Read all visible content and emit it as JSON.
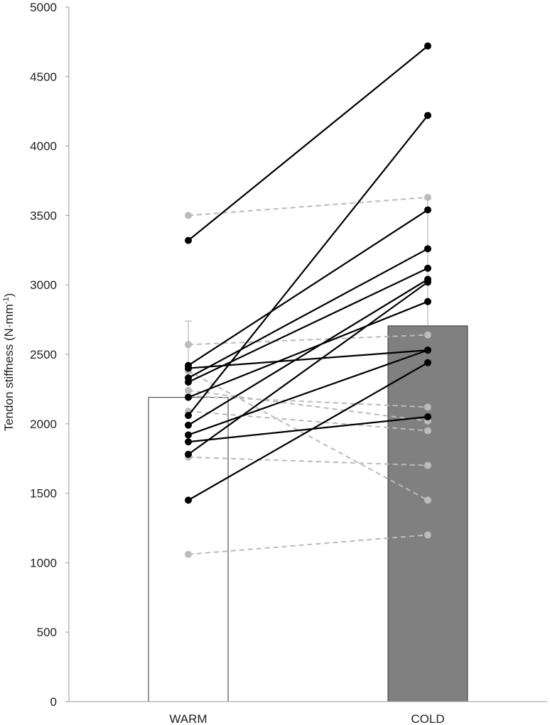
{
  "chart_data": {
    "type": "bar",
    "categories": [
      "WARM",
      "COLD"
    ],
    "means": [
      2190,
      2705
    ],
    "sd_upper": [
      2740,
      3620
    ],
    "ylabel": "Tendon stiffness (N·mm",
    "ylabel_superscript": "-1",
    "ylabel_close": ")",
    "ylim": [
      0,
      5000
    ],
    "yticks": [
      0,
      500,
      1000,
      1500,
      2000,
      2500,
      3000,
      3500,
      4000,
      4500,
      5000
    ],
    "grid": false,
    "bar_colors": [
      "#ffffff",
      "#808080"
    ],
    "bar_edge_color": "#333333",
    "responder_color": "#000000",
    "nonresponder_color": "#bbbbbb",
    "individual_series": [
      {
        "group": "responder",
        "values": [
          3320,
          4720
        ]
      },
      {
        "group": "responder",
        "values": [
          2060,
          4220
        ]
      },
      {
        "group": "responder",
        "values": [
          2420,
          3540
        ]
      },
      {
        "group": "responder",
        "values": [
          2330,
          3260
        ]
      },
      {
        "group": "responder",
        "values": [
          2300,
          3120
        ]
      },
      {
        "group": "responder",
        "values": [
          1990,
          3040
        ]
      },
      {
        "group": "responder",
        "values": [
          1780,
          3020
        ]
      },
      {
        "group": "responder",
        "values": [
          2190,
          2880
        ]
      },
      {
        "group": "responder",
        "values": [
          2400,
          2530
        ]
      },
      {
        "group": "responder",
        "values": [
          1920,
          2530
        ]
      },
      {
        "group": "responder",
        "values": [
          1450,
          2440
        ]
      },
      {
        "group": "responder",
        "values": [
          1870,
          2050
        ]
      },
      {
        "group": "nonresponder",
        "values": [
          3500,
          3630
        ]
      },
      {
        "group": "nonresponder",
        "values": [
          2570,
          2640
        ]
      },
      {
        "group": "nonresponder",
        "values": [
          2380,
          1450
        ]
      },
      {
        "group": "nonresponder",
        "values": [
          2240,
          2020
        ]
      },
      {
        "group": "nonresponder",
        "values": [
          2200,
          2120
        ]
      },
      {
        "group": "nonresponder",
        "values": [
          2090,
          1950
        ]
      },
      {
        "group": "nonresponder",
        "values": [
          1760,
          1700
        ]
      },
      {
        "group": "nonresponder",
        "values": [
          1060,
          1200
        ]
      }
    ]
  }
}
